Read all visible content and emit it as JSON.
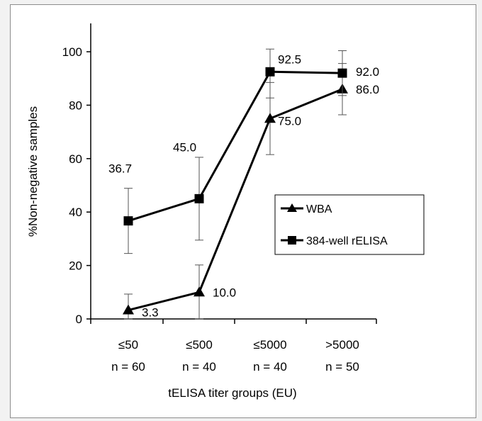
{
  "chart_data": {
    "type": "line",
    "title": "",
    "xlabel": "tELISA titer groups (EU)",
    "ylabel": "%Non-negative samples",
    "ylim": [
      0,
      100
    ],
    "yticks": [
      "0",
      "20",
      "40",
      "60",
      "80",
      "100"
    ],
    "categories": [
      {
        "group": "≤50",
        "n": "n = 60"
      },
      {
        "group": "≤500",
        "n": "n = 40"
      },
      {
        "group": "≤5000",
        "n": "n = 40"
      },
      {
        "group": ">5000",
        "n": "n = 50"
      }
    ],
    "series": [
      {
        "name": "WBA",
        "marker": "triangle",
        "values": [
          3.3,
          10.0,
          75.0,
          86.0
        ],
        "labels": [
          "3.3",
          "10.0",
          "75.0",
          "86.0"
        ],
        "error": [
          6.0,
          10.2,
          13.5,
          9.6
        ]
      },
      {
        "name": "384-well rELISA",
        "marker": "square",
        "values": [
          36.7,
          45.0,
          92.5,
          92.0
        ],
        "labels": [
          "36.7",
          "45.0",
          "92.5",
          "92.0"
        ],
        "error": [
          12.2,
          15.5,
          9.8,
          8.4
        ]
      }
    ],
    "legend": "right",
    "grid": false,
    "color": "#000000"
  }
}
